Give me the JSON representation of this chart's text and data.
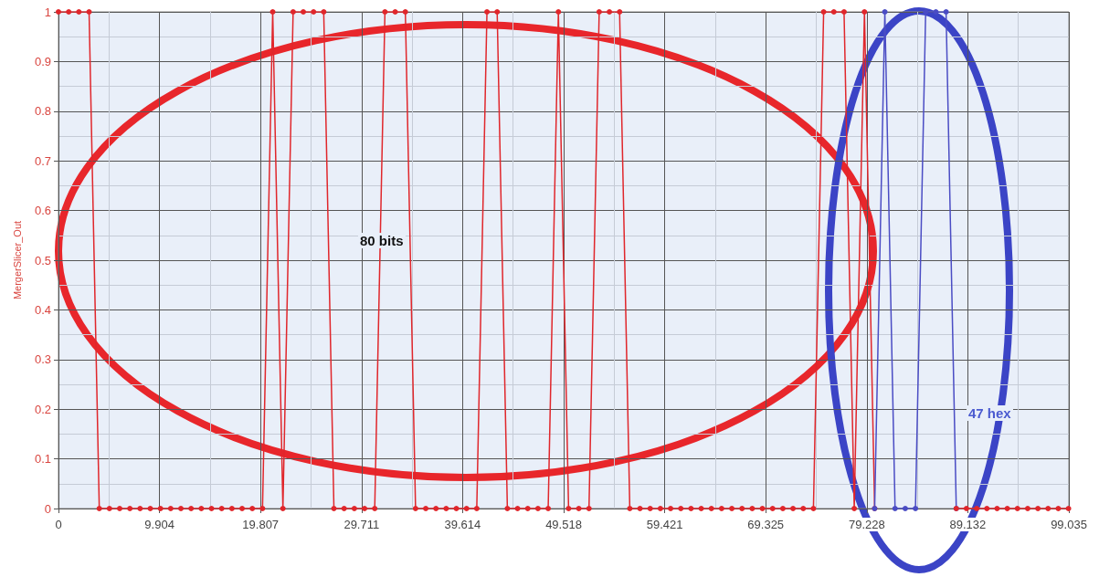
{
  "chart_data": {
    "type": "line",
    "ylabel": "MergerSlicer_Out",
    "xlim": [
      0,
      99.035
    ],
    "xticks": [
      0,
      9.904,
      19.807,
      29.711,
      39.614,
      49.518,
      59.421,
      69.325,
      79.228,
      89.132,
      99.035
    ],
    "ylim": [
      0,
      1
    ],
    "yticks": [
      0,
      0.1,
      0.2,
      0.3,
      0.4,
      0.5,
      0.6,
      0.7,
      0.8,
      0.9,
      1
    ],
    "grid": true,
    "marker": "circle",
    "line_style": "solid",
    "annotations": [
      "80 bits",
      "47 hex"
    ],
    "series": [
      {
        "color": "#e0262b",
        "x": [
          0,
          1,
          2,
          3,
          4,
          5,
          6,
          7,
          8,
          9,
          10,
          11,
          12,
          13,
          14,
          15,
          16,
          17,
          18,
          19,
          20,
          21,
          22,
          23,
          24,
          25,
          26,
          27,
          28,
          29,
          30,
          31,
          32,
          33,
          34,
          35,
          36,
          37,
          38,
          39,
          40,
          41,
          42,
          43,
          44,
          45,
          46,
          47,
          48,
          49,
          50,
          51,
          52,
          53,
          54,
          55,
          56,
          57,
          58,
          59,
          60,
          61,
          62,
          63,
          64,
          65,
          66,
          67,
          68,
          69,
          70,
          71,
          72,
          73,
          74,
          75,
          76,
          77,
          78,
          79,
          80
        ],
        "values": [
          1,
          1,
          1,
          1,
          0,
          0,
          0,
          0,
          0,
          0,
          0,
          0,
          0,
          0,
          0,
          0,
          0,
          0,
          0,
          0,
          0,
          1,
          0,
          1,
          1,
          1,
          1,
          0,
          0,
          0,
          0,
          0,
          1,
          1,
          1,
          0,
          0,
          0,
          0,
          0,
          0,
          0,
          1,
          1,
          0,
          0,
          0,
          0,
          0,
          1,
          0,
          0,
          0,
          1,
          1,
          1,
          0,
          0,
          0,
          0,
          0,
          0,
          0,
          0,
          0,
          0,
          0,
          0,
          0,
          0,
          0,
          0,
          0,
          0,
          0,
          1,
          1,
          1,
          0,
          1,
          0
        ]
      },
      {
        "color": "#4a4cc4",
        "x": [
          80,
          81,
          82,
          83,
          84,
          85,
          86,
          87,
          88
        ],
        "values": [
          0,
          1,
          0,
          0,
          0,
          1,
          1,
          1,
          0
        ]
      },
      {
        "color": "#e0262b",
        "x": [
          88,
          89,
          90,
          91,
          92,
          93,
          94,
          95,
          96,
          97,
          98,
          99
        ],
        "values": [
          0,
          0,
          0,
          0,
          0,
          0,
          0,
          0,
          0,
          0,
          0,
          0
        ]
      }
    ]
  }
}
